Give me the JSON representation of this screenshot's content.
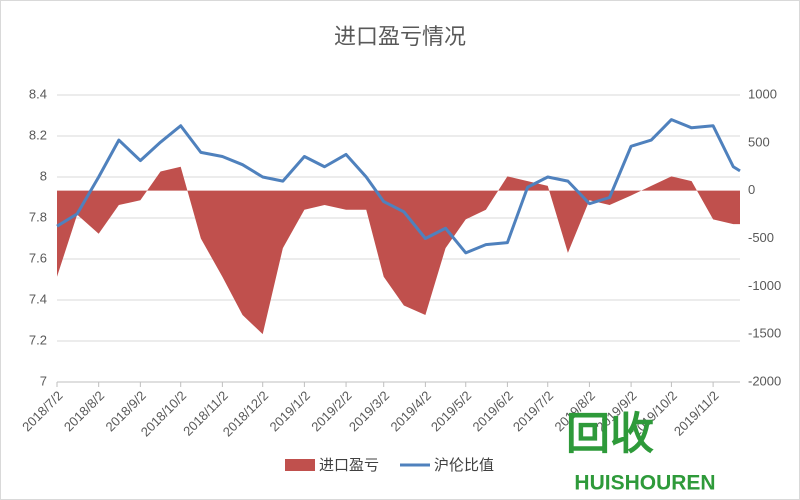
{
  "chart_data": {
    "type": "line-area",
    "title": "进口盈亏情况",
    "x": [
      "2018/7/2",
      "2018/7/17",
      "2018/8/2",
      "2018/8/17",
      "2018/9/2",
      "2018/9/17",
      "2018/10/2",
      "2018/10/17",
      "2018/11/2",
      "2018/11/17",
      "2018/12/2",
      "2018/12/17",
      "2019/1/2",
      "2019/1/17",
      "2019/2/2",
      "2019/2/17",
      "2019/3/2",
      "2019/3/17",
      "2019/4/2",
      "2019/4/17",
      "2019/5/2",
      "2019/5/17",
      "2019/6/2",
      "2019/6/17",
      "2019/7/2",
      "2019/7/17",
      "2019/8/2",
      "2019/8/17",
      "2019/9/2",
      "2019/9/17",
      "2019/10/2",
      "2019/10/17",
      "2019/11/2",
      "2019/11/17",
      "2019/11/22"
    ],
    "xlim": [
      "2018/7/2",
      "2019/11/22"
    ],
    "xticks": [
      "2018/7/2",
      "2018/8/2",
      "2018/9/2",
      "2018/10/2",
      "2018/11/2",
      "2018/12/2",
      "2019/1/2",
      "2019/2/2",
      "2019/3/2",
      "2019/4/2",
      "2019/5/2",
      "2019/6/2",
      "2019/7/2",
      "2019/8/2",
      "2019/9/2",
      "2019/10/2",
      "2019/11/2"
    ],
    "series": [
      {
        "name": "进口盈亏",
        "color": "#c0504d",
        "axis": "y2",
        "kind": "area",
        "values": [
          -900,
          -250,
          -450,
          -150,
          -100,
          200,
          250,
          -500,
          -900,
          -1300,
          -1500,
          -600,
          -200,
          -150,
          -200,
          -200,
          -900,
          -1200,
          -1300,
          -600,
          -300,
          -200,
          150,
          100,
          50,
          -650,
          -100,
          -150,
          -50,
          50,
          150,
          100,
          -300,
          -350,
          -350
        ]
      },
      {
        "name": "沪伦比值",
        "color": "#4f81bd",
        "axis": "y",
        "kind": "line",
        "values": [
          7.76,
          7.82,
          8.0,
          8.18,
          8.08,
          8.17,
          8.25,
          8.12,
          8.1,
          8.06,
          8.0,
          7.98,
          8.1,
          8.05,
          8.11,
          8.0,
          7.88,
          7.83,
          7.7,
          7.75,
          7.63,
          7.67,
          7.68,
          7.95,
          8.0,
          7.98,
          7.87,
          7.9,
          8.15,
          8.18,
          8.28,
          8.24,
          8.25,
          8.05,
          8.03
        ]
      }
    ],
    "ylim": [
      7,
      8.4
    ],
    "yticks": [
      7,
      7.2,
      7.4,
      7.6,
      7.8,
      8,
      8.2,
      8.4
    ],
    "y2lim": [
      -2000,
      1000
    ],
    "y2ticks": [
      -2000,
      -1500,
      -1000,
      -500,
      0,
      500,
      1000
    ],
    "grid": true,
    "legend": "bottom",
    "watermark": [
      "回收",
      "HUISHOUREN"
    ]
  }
}
